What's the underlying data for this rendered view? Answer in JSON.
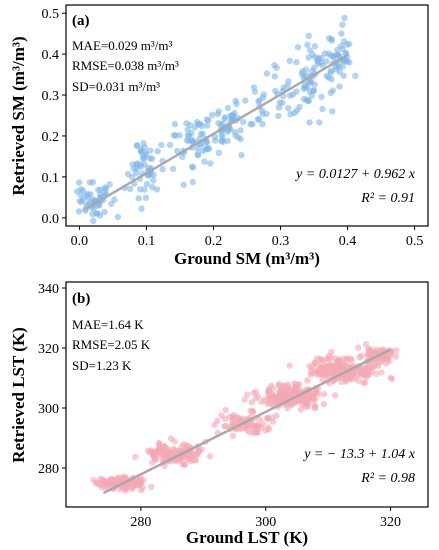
{
  "chart_data": [
    {
      "type": "scatter",
      "panel_label": "(a)",
      "xlabel": "Ground SM (m³/m³)",
      "ylabel": "Retrieved SM (m³/m³)",
      "xlim": [
        -0.02,
        0.52
      ],
      "ylim": [
        -0.02,
        0.52
      ],
      "xticks": [
        "0.0",
        "0.1",
        "0.2",
        "0.3",
        "0.4",
        "0.5"
      ],
      "yticks": [
        "0.0",
        "0.1",
        "0.2",
        "0.3",
        "0.4",
        "0.5"
      ],
      "stats": [
        "MAE=0.029 m³/m³",
        "RMSE=0.038 m³/m³",
        "SD=0.031 m³/m³"
      ],
      "equation": "y = 0.0127 + 0.962 x",
      "r2": "R² = 0.91",
      "fit": {
        "intercept": 0.0127,
        "slope": 0.962,
        "x_range": [
          0.01,
          0.4
        ]
      },
      "point_color": "#7fb6e8",
      "fit_color": "#a8a8a8",
      "clusters": [
        {
          "x": 0.02,
          "y": 0.04,
          "sx": 0.012,
          "sy": 0.025,
          "n": 55
        },
        {
          "x": 0.1,
          "y": 0.12,
          "sx": 0.013,
          "sy": 0.035,
          "n": 55
        },
        {
          "x": 0.17,
          "y": 0.18,
          "sx": 0.02,
          "sy": 0.035,
          "n": 55
        },
        {
          "x": 0.22,
          "y": 0.23,
          "sx": 0.015,
          "sy": 0.035,
          "n": 50
        },
        {
          "x": 0.3,
          "y": 0.29,
          "sx": 0.025,
          "sy": 0.04,
          "n": 45
        },
        {
          "x": 0.35,
          "y": 0.35,
          "sx": 0.015,
          "sy": 0.04,
          "n": 45
        },
        {
          "x": 0.39,
          "y": 0.4,
          "sx": 0.01,
          "sy": 0.035,
          "n": 45
        }
      ]
    },
    {
      "type": "scatter",
      "panel_label": "(b)",
      "xlabel": "Ground LST (K)",
      "ylabel": "Retrieved LST (K)",
      "xlim": [
        268,
        326
      ],
      "ylim": [
        267,
        342
      ],
      "xticks": [
        "280",
        "300",
        "320"
      ],
      "yticks": [
        "280",
        "300",
        "320",
        "340"
      ],
      "stats": [
        "MAE=1.64 K",
        "RMSE=2.05 K",
        "SD=1.23 K"
      ],
      "equation": "y = − 13.3 + 1.04 x",
      "r2": "R² = 0.98",
      "fit": {
        "intercept": -13.3,
        "slope": 1.04,
        "x_range": [
          274,
          320
        ]
      },
      "point_color": "#f4a9b4",
      "fit_color": "#a8a8a8",
      "clusters": [
        {
          "x": 277,
          "y": 275,
          "sx": 2.0,
          "sy": 1.0,
          "n": 130
        },
        {
          "x": 285.5,
          "y": 284.5,
          "sx": 2.2,
          "sy": 1.6,
          "n": 140
        },
        {
          "x": 297,
          "y": 295,
          "sx": 2.0,
          "sy": 1.6,
          "n": 80
        },
        {
          "x": 304,
          "y": 304,
          "sx": 2.8,
          "sy": 2.0,
          "n": 180
        },
        {
          "x": 312.5,
          "y": 312.5,
          "sx": 3.0,
          "sy": 1.8,
          "n": 200
        },
        {
          "x": 318,
          "y": 317.5,
          "sx": 1.3,
          "sy": 1.2,
          "n": 80
        }
      ]
    }
  ]
}
